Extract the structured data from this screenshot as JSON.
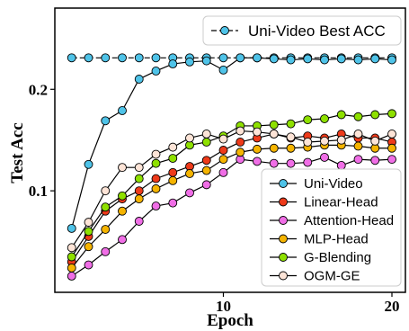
{
  "chart_data": {
    "type": "line",
    "xlabel": "Epoch",
    "ylabel": "Test Acc",
    "xlim": [
      0,
      20.8
    ],
    "ylim": [
      0.0,
      0.28
    ],
    "xticks": [
      10,
      20
    ],
    "yticks": [
      0.1,
      0.2
    ],
    "xtick_labels": [
      "10",
      "20"
    ],
    "ytick_labels": [
      "0.1",
      "0.2"
    ],
    "grid": false,
    "x": [
      1,
      2,
      3,
      4,
      5,
      6,
      7,
      8,
      9,
      10,
      11,
      12,
      13,
      14,
      15,
      16,
      17,
      18,
      19,
      20
    ],
    "reference_line": {
      "name": "Uni-Video Best ACC",
      "value": 0.231,
      "color": "#4fc3e8"
    },
    "legend_top": {
      "placement": "top-right",
      "entries": [
        "Uni-Video Best ACC"
      ]
    },
    "legend_main": {
      "placement": "bottom-right",
      "entries": [
        "Uni-Video",
        "Linear-Head",
        "Attention-Head",
        "MLP-Head",
        "G-Blending",
        "OGM-GE"
      ]
    },
    "series": [
      {
        "name": "Uni-Video",
        "color": "#4fc3e8",
        "values": [
          0.063,
          0.126,
          0.169,
          0.179,
          0.21,
          0.218,
          0.225,
          0.227,
          0.228,
          0.219,
          0.231,
          0.231,
          0.23,
          0.229,
          0.23,
          0.229,
          0.23,
          0.229,
          0.23,
          0.229
        ]
      },
      {
        "name": "Linear-Head",
        "color": "#ee3a1a",
        "values": [
          0.03,
          0.055,
          0.08,
          0.092,
          0.1,
          0.112,
          0.118,
          0.124,
          0.13,
          0.14,
          0.148,
          0.152,
          0.156,
          0.152,
          0.154,
          0.152,
          0.156,
          0.152,
          0.152,
          0.148
        ]
      },
      {
        "name": "Attention-Head",
        "color": "#f06ee6",
        "values": [
          0.016,
          0.027,
          0.04,
          0.052,
          0.07,
          0.085,
          0.088,
          0.098,
          0.106,
          0.118,
          0.131,
          0.129,
          0.127,
          0.127,
          0.128,
          0.133,
          0.125,
          0.131,
          0.13,
          0.131
        ]
      },
      {
        "name": "MLP-Head",
        "color": "#f5b400",
        "values": [
          0.024,
          0.045,
          0.062,
          0.08,
          0.092,
          0.102,
          0.11,
          0.117,
          0.12,
          0.131,
          0.138,
          0.141,
          0.142,
          0.142,
          0.143,
          0.145,
          0.145,
          0.144,
          0.142,
          0.142
        ]
      },
      {
        "name": "G-Blending",
        "color": "#8ee000",
        "values": [
          0.035,
          0.06,
          0.084,
          0.095,
          0.112,
          0.127,
          0.132,
          0.145,
          0.148,
          0.154,
          0.164,
          0.164,
          0.165,
          0.166,
          0.17,
          0.171,
          0.175,
          0.173,
          0.175,
          0.176
        ]
      },
      {
        "name": "OGM-GE",
        "color": "#fde4d7",
        "values": [
          0.044,
          0.069,
          0.1,
          0.123,
          0.123,
          0.136,
          0.143,
          0.152,
          0.156,
          0.151,
          0.159,
          0.158,
          0.156,
          0.153,
          0.148,
          0.149,
          0.15,
          0.156,
          0.149,
          0.156
        ]
      }
    ]
  }
}
